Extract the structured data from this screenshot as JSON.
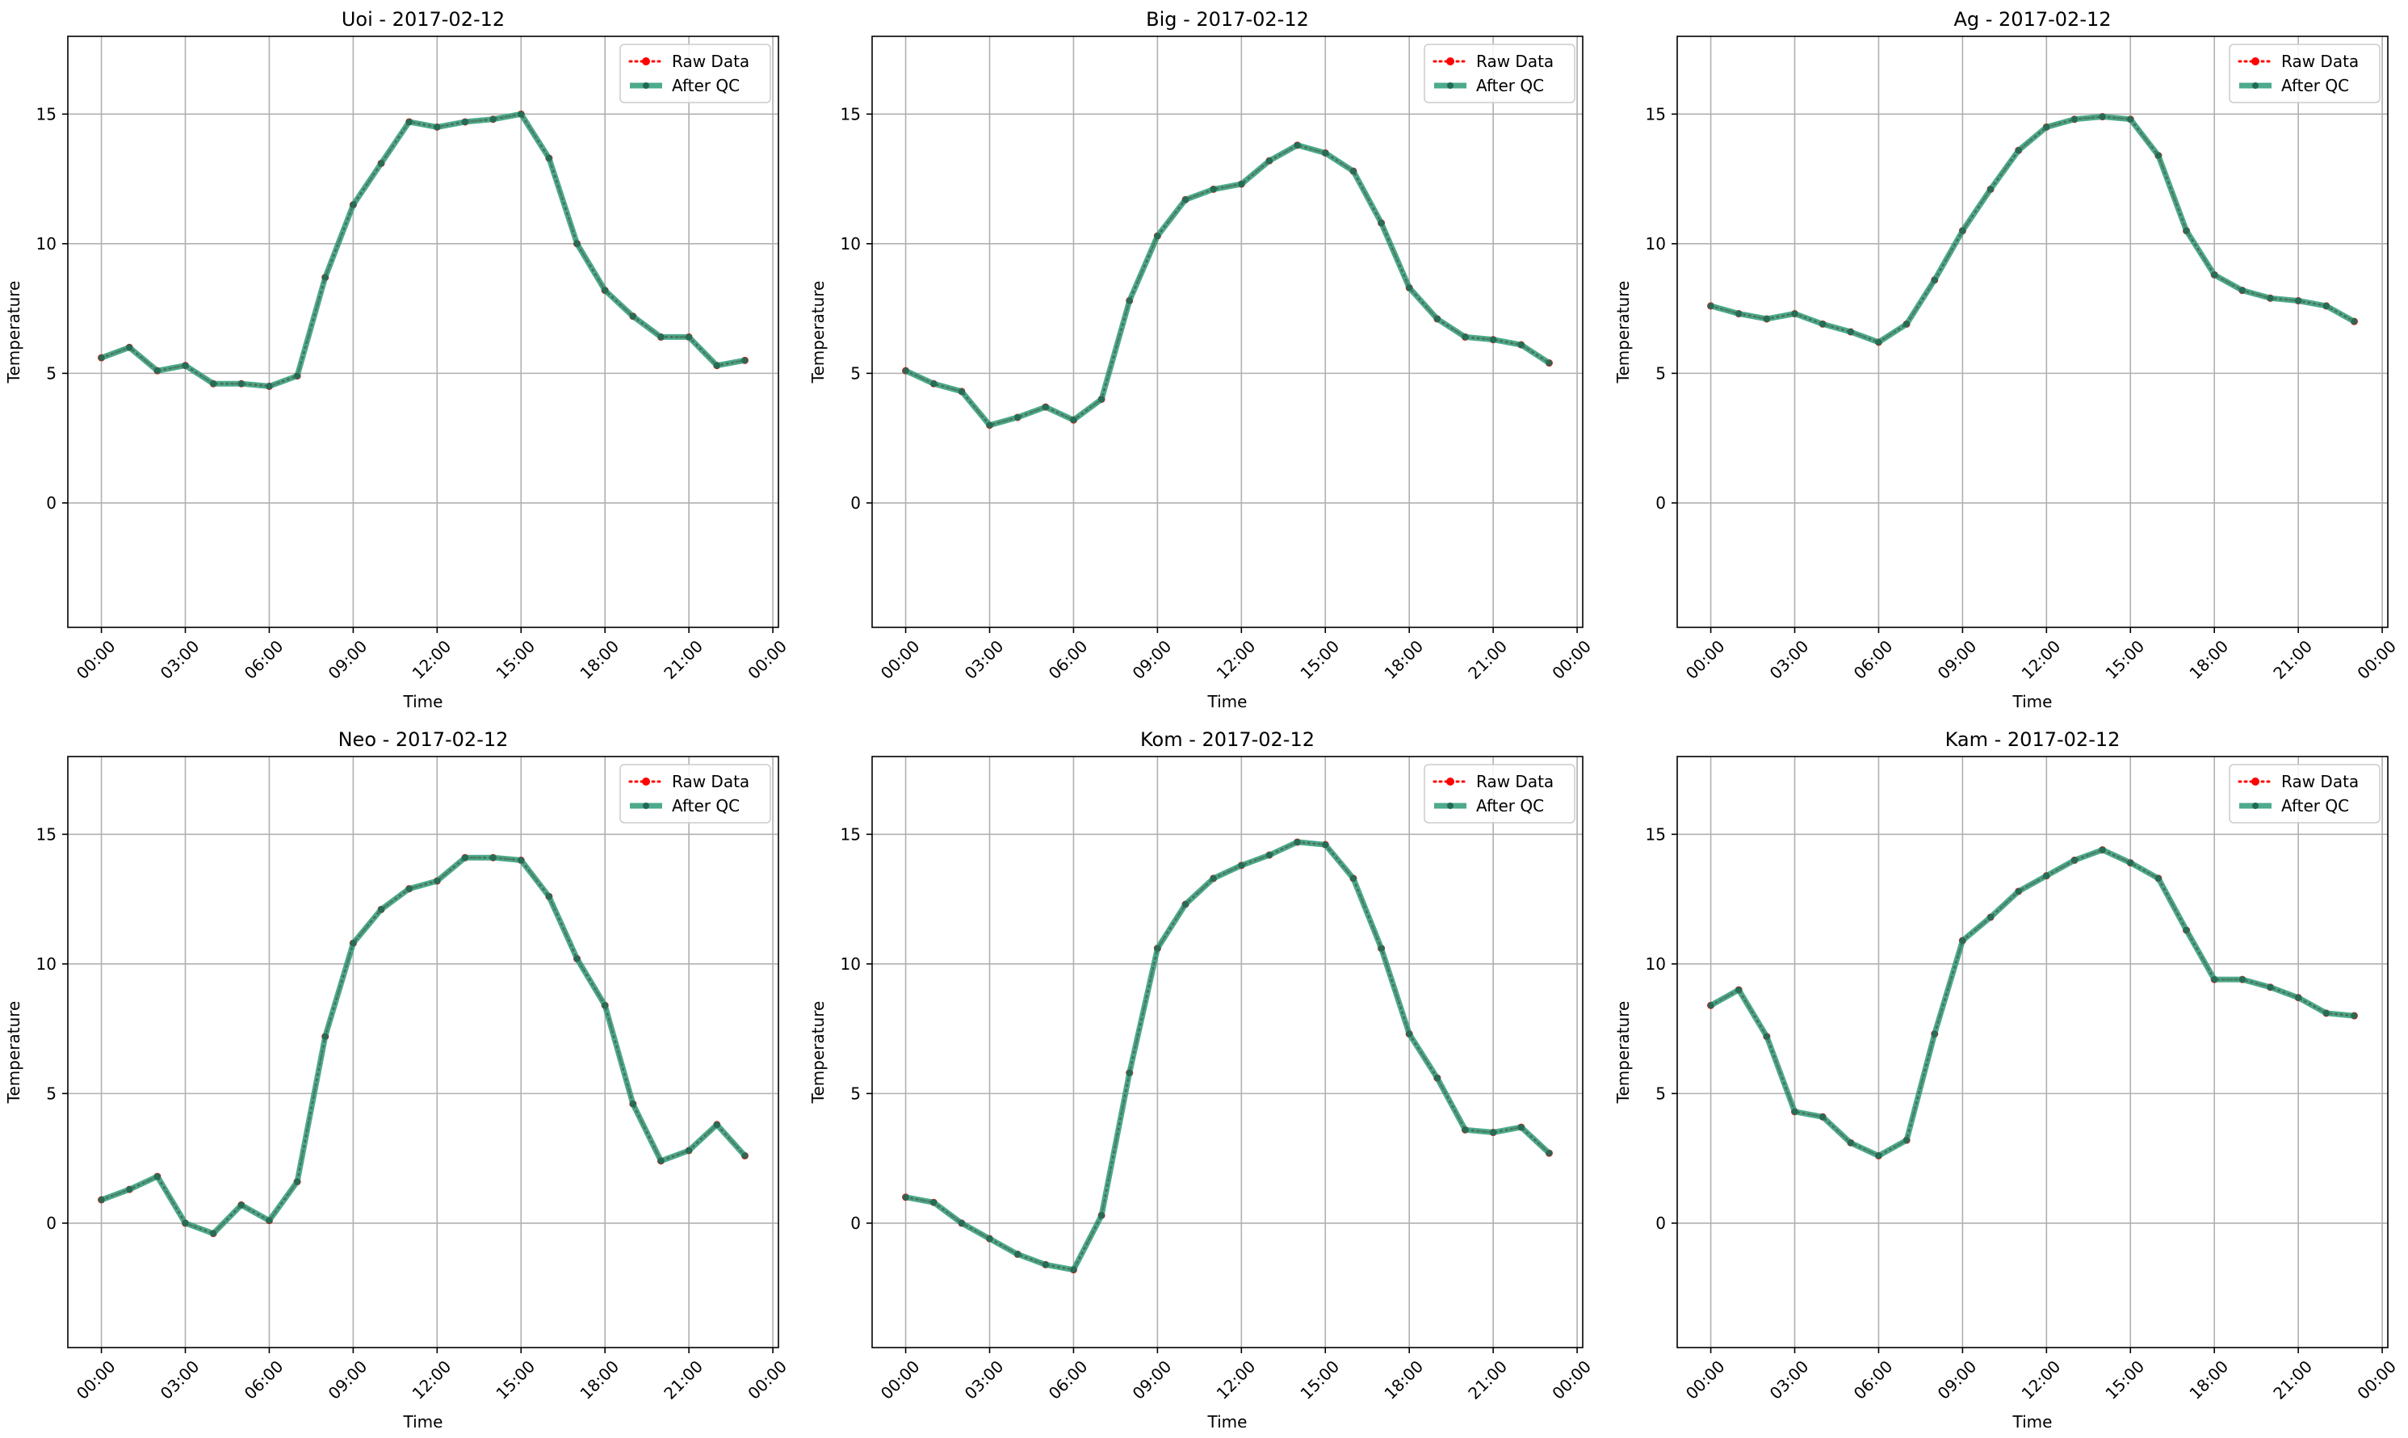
{
  "figure": {
    "background": "#ffffff",
    "raw_color": "#ff0000",
    "qc_color": "#2e9b78",
    "grid_color": "#b0b0b0"
  },
  "chart_data": [
    {
      "type": "line",
      "title": "Uoi - 2017-02-12",
      "xlabel": "Time",
      "ylabel": "Temperature",
      "xlim_hours": [
        -1.2,
        24.2
      ],
      "ylim": [
        -4.8,
        18
      ],
      "xticks": [
        "00:00",
        "03:00",
        "06:00",
        "09:00",
        "12:00",
        "15:00",
        "18:00",
        "21:00",
        "00:00"
      ],
      "yticks": [
        0,
        5,
        10,
        15
      ],
      "grid": true,
      "legend": "top-right",
      "x_hours": [
        0,
        1,
        2,
        3,
        4,
        5,
        6,
        7,
        8,
        9,
        10,
        11,
        12,
        13,
        14,
        15,
        16,
        17,
        18,
        19,
        20,
        21,
        22,
        23
      ],
      "series": [
        {
          "name": "Raw Data",
          "style": "dotted",
          "values": [
            5.6,
            6.0,
            5.1,
            5.3,
            4.6,
            4.6,
            4.5,
            4.9,
            8.7,
            11.5,
            13.1,
            14.7,
            14.5,
            14.7,
            14.8,
            15.0,
            13.3,
            10.0,
            8.2,
            7.2,
            6.4,
            6.4,
            5.3,
            5.5
          ]
        },
        {
          "name": "After QC",
          "style": "solid",
          "values": [
            5.6,
            6.0,
            5.1,
            5.3,
            4.6,
            4.6,
            4.5,
            4.9,
            8.7,
            11.5,
            13.1,
            14.7,
            14.5,
            14.7,
            14.8,
            15.0,
            13.3,
            10.0,
            8.2,
            7.2,
            6.4,
            6.4,
            5.3,
            5.5
          ]
        }
      ]
    },
    {
      "type": "line",
      "title": "Big - 2017-02-12",
      "xlabel": "Time",
      "ylabel": "Temperature",
      "xlim_hours": [
        -1.2,
        24.2
      ],
      "ylim": [
        -4.8,
        18
      ],
      "xticks": [
        "00:00",
        "03:00",
        "06:00",
        "09:00",
        "12:00",
        "15:00",
        "18:00",
        "21:00",
        "00:00"
      ],
      "yticks": [
        0,
        5,
        10,
        15
      ],
      "grid": true,
      "legend": "top-right",
      "x_hours": [
        0,
        1,
        2,
        3,
        4,
        5,
        6,
        7,
        8,
        9,
        10,
        11,
        12,
        13,
        14,
        15,
        16,
        17,
        18,
        19,
        20,
        21,
        22,
        23
      ],
      "series": [
        {
          "name": "Raw Data",
          "style": "dotted",
          "values": [
            5.1,
            4.6,
            4.3,
            3.0,
            3.3,
            3.7,
            3.2,
            4.0,
            7.8,
            10.3,
            11.7,
            12.1,
            12.3,
            13.2,
            13.8,
            13.5,
            12.8,
            10.8,
            8.3,
            7.1,
            6.4,
            6.3,
            6.1,
            5.4
          ]
        },
        {
          "name": "After QC",
          "style": "solid",
          "values": [
            5.1,
            4.6,
            4.3,
            3.0,
            3.3,
            3.7,
            3.2,
            4.0,
            7.8,
            10.3,
            11.7,
            12.1,
            12.3,
            13.2,
            13.8,
            13.5,
            12.8,
            10.8,
            8.3,
            7.1,
            6.4,
            6.3,
            6.1,
            5.4
          ]
        }
      ]
    },
    {
      "type": "line",
      "title": "Ag - 2017-02-12",
      "xlabel": "Time",
      "ylabel": "Temperature",
      "xlim_hours": [
        -1.2,
        24.2
      ],
      "ylim": [
        -4.8,
        18
      ],
      "xticks": [
        "00:00",
        "03:00",
        "06:00",
        "09:00",
        "12:00",
        "15:00",
        "18:00",
        "21:00",
        "00:00"
      ],
      "yticks": [
        0,
        5,
        10,
        15
      ],
      "grid": true,
      "legend": "top-right",
      "x_hours": [
        0,
        1,
        2,
        3,
        4,
        5,
        6,
        7,
        8,
        9,
        10,
        11,
        12,
        13,
        14,
        15,
        16,
        17,
        18,
        19,
        20,
        21,
        22,
        23
      ],
      "series": [
        {
          "name": "Raw Data",
          "style": "dotted",
          "values": [
            7.6,
            7.3,
            7.1,
            7.3,
            6.9,
            6.6,
            6.2,
            6.9,
            8.6,
            10.5,
            12.1,
            13.6,
            14.5,
            14.8,
            14.9,
            14.8,
            13.4,
            10.5,
            8.8,
            8.2,
            7.9,
            7.8,
            7.6,
            7.0
          ]
        },
        {
          "name": "After QC",
          "style": "solid",
          "values": [
            7.6,
            7.3,
            7.1,
            7.3,
            6.9,
            6.6,
            6.2,
            6.9,
            8.6,
            10.5,
            12.1,
            13.6,
            14.5,
            14.8,
            14.9,
            14.8,
            13.4,
            10.5,
            8.8,
            8.2,
            7.9,
            7.8,
            7.6,
            7.0
          ]
        }
      ]
    },
    {
      "type": "line",
      "title": "Neo - 2017-02-12",
      "xlabel": "Time",
      "ylabel": "Temperature",
      "xlim_hours": [
        -1.2,
        24.2
      ],
      "ylim": [
        -4.8,
        18
      ],
      "xticks": [
        "00:00",
        "03:00",
        "06:00",
        "09:00",
        "12:00",
        "15:00",
        "18:00",
        "21:00",
        "00:00"
      ],
      "yticks": [
        0,
        5,
        10,
        15
      ],
      "grid": true,
      "legend": "top-right",
      "x_hours": [
        0,
        1,
        2,
        3,
        4,
        5,
        6,
        7,
        8,
        9,
        10,
        11,
        12,
        13,
        14,
        15,
        16,
        17,
        18,
        19,
        20,
        21,
        22,
        23
      ],
      "series": [
        {
          "name": "Raw Data",
          "style": "dotted",
          "values": [
            0.9,
            1.3,
            1.8,
            0.0,
            -0.4,
            0.7,
            0.1,
            1.6,
            7.2,
            10.8,
            12.1,
            12.9,
            13.2,
            14.1,
            14.1,
            14.0,
            12.6,
            10.2,
            8.4,
            4.6,
            2.4,
            2.8,
            3.8,
            2.6
          ]
        },
        {
          "name": "After QC",
          "style": "solid",
          "values": [
            0.9,
            1.3,
            1.8,
            0.0,
            -0.4,
            0.7,
            0.1,
            1.6,
            7.2,
            10.8,
            12.1,
            12.9,
            13.2,
            14.1,
            14.1,
            14.0,
            12.6,
            10.2,
            8.4,
            4.6,
            2.4,
            2.8,
            3.8,
            2.6
          ]
        }
      ]
    },
    {
      "type": "line",
      "title": "Kom - 2017-02-12",
      "xlabel": "Time",
      "ylabel": "Temperature",
      "xlim_hours": [
        -1.2,
        24.2
      ],
      "ylim": [
        -4.8,
        18
      ],
      "xticks": [
        "00:00",
        "03:00",
        "06:00",
        "09:00",
        "12:00",
        "15:00",
        "18:00",
        "21:00",
        "00:00"
      ],
      "yticks": [
        0,
        5,
        10,
        15
      ],
      "grid": true,
      "legend": "top-right",
      "x_hours": [
        0,
        1,
        2,
        3,
        4,
        5,
        6,
        7,
        8,
        9,
        10,
        11,
        12,
        13,
        14,
        15,
        16,
        17,
        18,
        19,
        20,
        21,
        22,
        23
      ],
      "series": [
        {
          "name": "Raw Data",
          "style": "dotted",
          "values": [
            1.0,
            0.8,
            0.0,
            -0.6,
            -1.2,
            -1.6,
            -1.8,
            0.3,
            5.8,
            10.6,
            12.3,
            13.3,
            13.8,
            14.2,
            14.7,
            14.6,
            13.3,
            10.6,
            7.3,
            5.6,
            3.6,
            3.5,
            3.7,
            2.7
          ]
        },
        {
          "name": "After QC",
          "style": "solid",
          "values": [
            1.0,
            0.8,
            0.0,
            -0.6,
            -1.2,
            -1.6,
            -1.8,
            0.3,
            5.8,
            10.6,
            12.3,
            13.3,
            13.8,
            14.2,
            14.7,
            14.6,
            13.3,
            10.6,
            7.3,
            5.6,
            3.6,
            3.5,
            3.7,
            2.7
          ]
        }
      ]
    },
    {
      "type": "line",
      "title": "Kam - 2017-02-12",
      "xlabel": "Time",
      "ylabel": "Temperature",
      "xlim_hours": [
        -1.2,
        24.2
      ],
      "ylim": [
        -4.8,
        18
      ],
      "xticks": [
        "00:00",
        "03:00",
        "06:00",
        "09:00",
        "12:00",
        "15:00",
        "18:00",
        "21:00",
        "00:00"
      ],
      "yticks": [
        0,
        5,
        10,
        15
      ],
      "grid": true,
      "legend": "top-right",
      "x_hours": [
        0,
        1,
        2,
        3,
        4,
        5,
        6,
        7,
        8,
        9,
        10,
        11,
        12,
        13,
        14,
        15,
        16,
        17,
        18,
        19,
        20,
        21,
        22,
        23
      ],
      "series": [
        {
          "name": "Raw Data",
          "style": "dotted",
          "values": [
            8.4,
            9.0,
            7.2,
            4.3,
            4.1,
            3.1,
            2.6,
            3.2,
            7.3,
            10.9,
            11.8,
            12.8,
            13.4,
            14.0,
            14.4,
            13.9,
            13.3,
            11.3,
            9.4,
            9.4,
            9.1,
            8.7,
            8.1,
            8.0
          ]
        },
        {
          "name": "After QC",
          "style": "solid",
          "values": [
            8.4,
            9.0,
            7.2,
            4.3,
            4.1,
            3.1,
            2.6,
            3.2,
            7.3,
            10.9,
            11.8,
            12.8,
            13.4,
            14.0,
            14.4,
            13.9,
            13.3,
            11.3,
            9.4,
            9.4,
            9.1,
            8.7,
            8.1,
            8.0
          ]
        }
      ]
    }
  ]
}
